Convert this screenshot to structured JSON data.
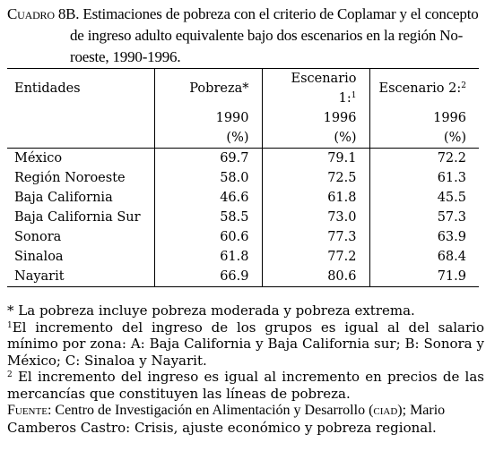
{
  "caption": {
    "label": "Cuadro 8B.",
    "line1": "Estimaciones de pobreza con el criterio de Coplamar y el concepto",
    "line2": "de ingreso adulto equivalente bajo dos escenarios en la región No-",
    "line3": "roeste, 1990-1996."
  },
  "table": {
    "headers": {
      "entidades": "Entidades",
      "col1": {
        "name": "Pobreza*",
        "year": "1990",
        "unit": "(%)"
      },
      "col2": {
        "name": "Escenario 1:",
        "sup": "1",
        "year": "1996",
        "unit": "(%)"
      },
      "col3": {
        "name": "Escenario 2:",
        "sup": "2",
        "year": "1996",
        "unit": "(%)"
      }
    },
    "rows": [
      {
        "entity": "México",
        "v1": "69.7",
        "v2": "79.1",
        "v3": "72.2"
      },
      {
        "entity": "Región Noroeste",
        "v1": "58.0",
        "v2": "72.5",
        "v3": "61.3"
      },
      {
        "entity": "Baja California",
        "v1": "46.6",
        "v2": "61.8",
        "v3": "45.5"
      },
      {
        "entity": "Baja California Sur",
        "v1": "58.5",
        "v2": "73.0",
        "v3": "57.3"
      },
      {
        "entity": "Sonora",
        "v1": "60.6",
        "v2": "77.3",
        "v3": "63.9"
      },
      {
        "entity": "Sinaloa",
        "v1": "61.8",
        "v2": "77.2",
        "v3": "68.4"
      },
      {
        "entity": "Nayarit",
        "v1": "66.9",
        "v2": "80.6",
        "v3": "71.9"
      }
    ]
  },
  "notes": {
    "n1": "* La pobreza incluye pobreza moderada y pobreza extrema.",
    "n2_sup": "1",
    "n2": "El incremento del ingreso de los grupos es igual al del salario mínimo por zona: A: Baja California y Baja California sur; B: Sonora y México; C: Sinaloa y Nayarit.",
    "n3_sup": "2",
    "n3": " El incremento del ingreso es igual al incremento en precios de las mercancías que constituyen las líneas de pobreza.",
    "source_label": "Fuente:",
    "source_mix": " Centro de Investigación en Alimentación y Desarrollo (",
    "source_ciad": "ciad",
    "source_mix2": "); Mario",
    "source_rest": "Camberos Castro: Crisis, ajuste económico y pobreza regional."
  }
}
